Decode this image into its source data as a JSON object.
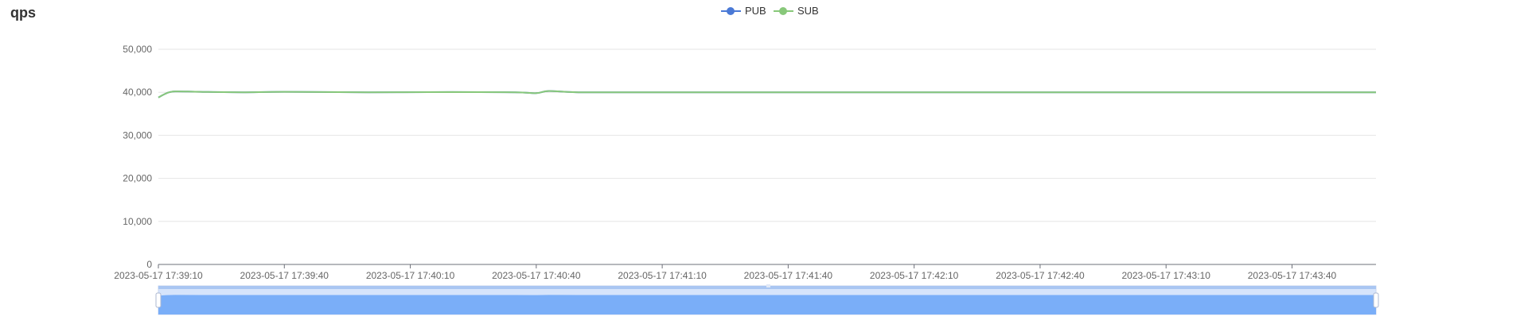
{
  "panel": {
    "title": "qps"
  },
  "colors": {
    "pub": "#4a79d6",
    "sub": "#88c87a",
    "grid": "#e6e6e6",
    "axis": "#6e7079",
    "zoom_fill": "#7aaef8",
    "zoom_bg": "#d6e4fb"
  },
  "chart_data": {
    "type": "line",
    "title": "",
    "xlabel": "",
    "ylabel": "",
    "ylim": [
      0,
      50000
    ],
    "y_ticks": [
      0,
      10000,
      20000,
      30000,
      40000,
      50000
    ],
    "y_tick_labels": [
      "0",
      "10,000",
      "20,000",
      "30,000",
      "40,000",
      "50,000"
    ],
    "x_range": [
      "2023-05-17 17:39:10",
      "2023-05-17 17:44:00"
    ],
    "x_tick_labels": [
      "2023-05-17 17:39:10",
      "2023-05-17 17:39:40",
      "2023-05-17 17:40:10",
      "2023-05-17 17:40:40",
      "2023-05-17 17:41:10",
      "2023-05-17 17:41:40",
      "2023-05-17 17:42:10",
      "2023-05-17 17:42:40",
      "2023-05-17 17:43:10",
      "2023-05-17 17:43:40"
    ],
    "legend_position": "top-center",
    "grid": true,
    "series": [
      {
        "name": "PUB",
        "color": "#4a79d6",
        "x": [
          "2023-05-17 17:39:10",
          "2023-05-17 17:39:12",
          "2023-05-17 17:39:14",
          "2023-05-17 17:39:20",
          "2023-05-17 17:39:30",
          "2023-05-17 17:39:40",
          "2023-05-17 17:40:00",
          "2023-05-17 17:40:20",
          "2023-05-17 17:40:35",
          "2023-05-17 17:40:40",
          "2023-05-17 17:40:43",
          "2023-05-17 17:40:50",
          "2023-05-17 17:41:10",
          "2023-05-17 17:41:40",
          "2023-05-17 17:42:10",
          "2023-05-17 17:42:40",
          "2023-05-17 17:43:10",
          "2023-05-17 17:43:40",
          "2023-05-17 17:44:00"
        ],
        "y": [
          38800,
          39800,
          40200,
          40100,
          40000,
          40100,
          40000,
          40050,
          40000,
          39800,
          40300,
          40000,
          40000,
          40000,
          40000,
          40000,
          40000,
          40000,
          40000
        ]
      },
      {
        "name": "SUB",
        "color": "#88c87a",
        "x": [
          "2023-05-17 17:39:10",
          "2023-05-17 17:39:12",
          "2023-05-17 17:39:14",
          "2023-05-17 17:39:20",
          "2023-05-17 17:39:30",
          "2023-05-17 17:39:40",
          "2023-05-17 17:40:00",
          "2023-05-17 17:40:20",
          "2023-05-17 17:40:35",
          "2023-05-17 17:40:40",
          "2023-05-17 17:40:43",
          "2023-05-17 17:40:50",
          "2023-05-17 17:41:10",
          "2023-05-17 17:41:40",
          "2023-05-17 17:42:10",
          "2023-05-17 17:42:40",
          "2023-05-17 17:43:10",
          "2023-05-17 17:43:40",
          "2023-05-17 17:44:00"
        ],
        "y": [
          38800,
          39800,
          40200,
          40100,
          40000,
          40100,
          40000,
          40050,
          40000,
          39800,
          40300,
          40000,
          40000,
          40000,
          40000,
          40000,
          40000,
          40000,
          40000
        ]
      }
    ]
  }
}
